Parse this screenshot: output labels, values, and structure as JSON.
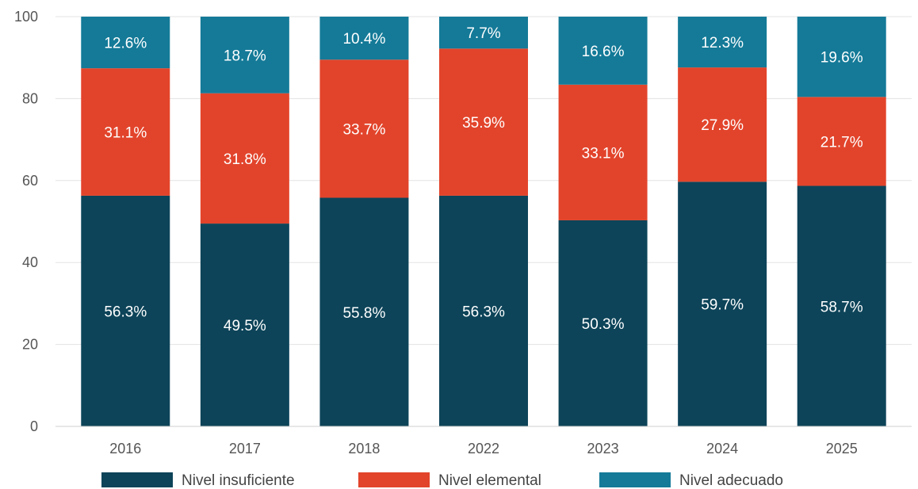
{
  "chart_data": {
    "type": "bar",
    "stacked": true,
    "categories": [
      "2016",
      "2017",
      "2018",
      "2022",
      "2023",
      "2024",
      "2025"
    ],
    "series": [
      {
        "name": "Nivel insuficiente",
        "color": "#0d4459",
        "values": [
          56.3,
          49.5,
          55.8,
          56.3,
          50.3,
          59.7,
          58.7
        ],
        "labels": [
          "56.3%",
          "49.5%",
          "55.8%",
          "56.3%",
          "50.3%",
          "59.7%",
          "58.7%"
        ]
      },
      {
        "name": "Nivel elemental",
        "color": "#e2442b",
        "values": [
          31.1,
          31.8,
          33.7,
          35.9,
          33.1,
          27.9,
          21.7
        ],
        "labels": [
          "31.1%",
          "31.8%",
          "33.7%",
          "35.9%",
          "33.1%",
          "27.9%",
          "21.7%"
        ]
      },
      {
        "name": "Nivel adecuado",
        "color": "#147a98",
        "values": [
          12.6,
          18.7,
          10.4,
          7.7,
          16.6,
          12.3,
          19.6
        ],
        "labels": [
          "12.6%",
          "18.7%",
          "10.4%",
          "7.7%",
          "16.6%",
          "12.3%",
          "19.6%"
        ]
      }
    ],
    "yticks": [
      "0",
      "20",
      "40",
      "60",
      "80",
      "100"
    ],
    "ylim": [
      0,
      100
    ],
    "grid": true,
    "legend_position": "bottom",
    "title": "",
    "xlabel": "",
    "ylabel": ""
  }
}
